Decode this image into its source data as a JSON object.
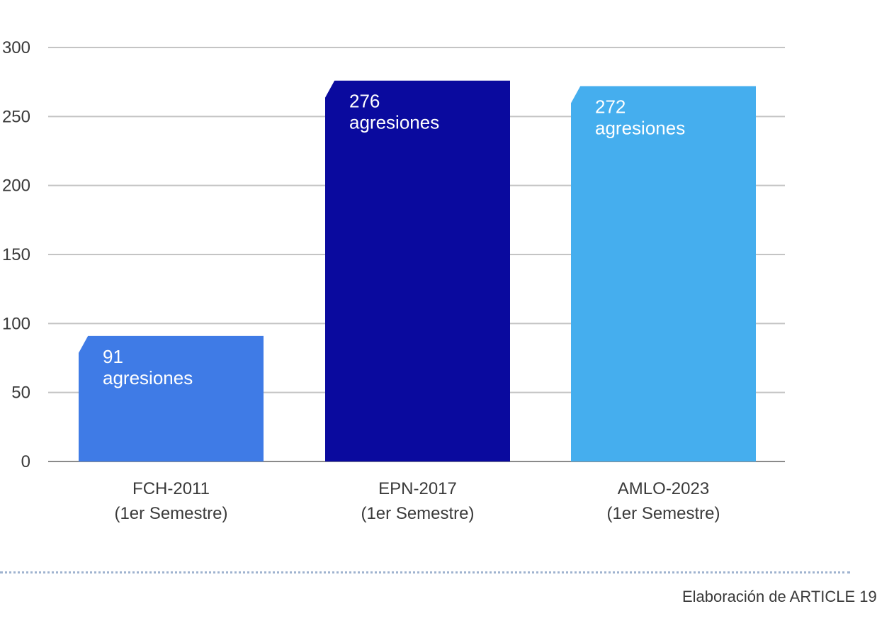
{
  "chart_data": {
    "type": "bar",
    "categories": [
      {
        "line1": "FCH-2011",
        "line2": "(1er Semestre)"
      },
      {
        "line1": "EPN-2017",
        "line2": "(1er Semestre)"
      },
      {
        "line1": "AMLO-2023",
        "line2": "(1er Semestre)"
      }
    ],
    "values": [
      91,
      276,
      272
    ],
    "bar_labels": [
      {
        "value": "91",
        "unit": "agresiones"
      },
      {
        "value": "276",
        "unit": "agresiones"
      },
      {
        "value": "272",
        "unit": "agresiones"
      }
    ],
    "colors": [
      "#3f7be6",
      "#0a0a9e",
      "#45aeee"
    ],
    "ylim": [
      0,
      300
    ],
    "yticks": [
      0,
      50,
      100,
      150,
      200,
      250,
      300
    ],
    "ytick_labels": [
      "0",
      "50",
      "100",
      "150",
      "200",
      "250",
      "300"
    ],
    "grid": true,
    "title": "",
    "xlabel": "",
    "ylabel": ""
  },
  "source_note": "Elaboración de ARTICLE 19"
}
